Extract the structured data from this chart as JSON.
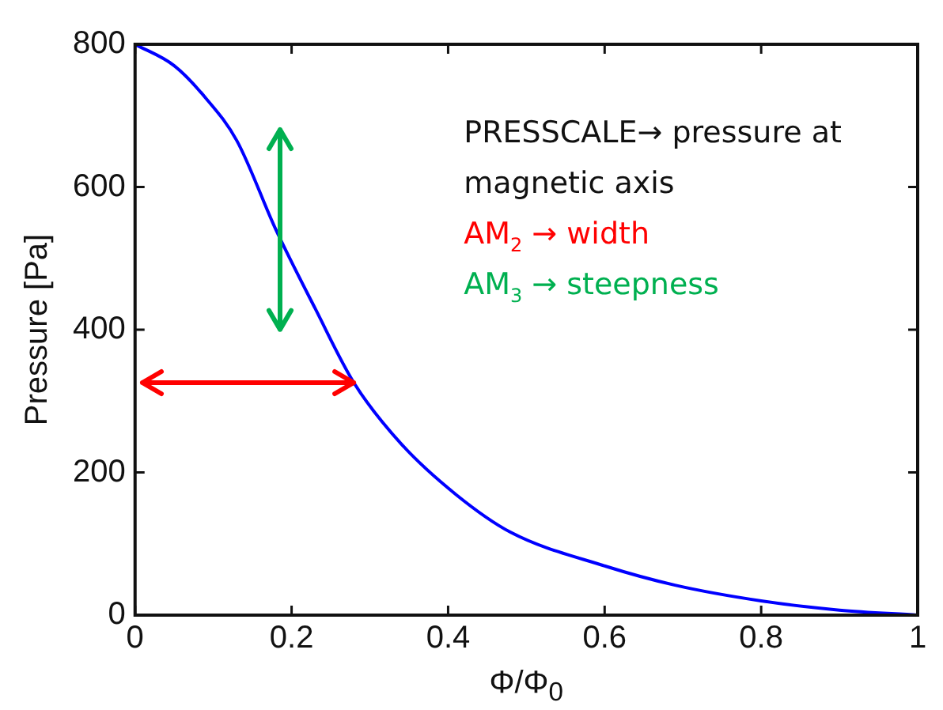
{
  "chart_data": {
    "type": "line",
    "xlabel": "Φ/Φ$_{0}$",
    "ylabel": "Pressure [Pa]",
    "x": [
      0,
      0.05,
      0.09,
      0.13,
      0.18,
      0.23,
      0.28,
      0.34,
      0.41,
      0.48,
      0.6,
      0.69,
      0.8,
      0.9,
      1.0
    ],
    "series": [
      {
        "color": "#0000ff",
        "values": [
          800,
          770,
          725,
          665,
          540,
          430,
          325,
          240,
          169,
          116,
          69,
          42,
          20,
          7,
          0
        ]
      }
    ],
    "xlim": [
      0,
      1
    ],
    "xticks": [
      0,
      0.2,
      0.4,
      0.6,
      0.8,
      1
    ],
    "ylim": [
      0,
      800
    ],
    "yticks": [
      0,
      200,
      400,
      600,
      800
    ],
    "grid": false,
    "legend": false,
    "marker": "none",
    "line_style": "solid",
    "annotations": [
      "PRESSCALE→ pressure at magnetic axis",
      "AM$_{2}$ → width",
      "AM$_{3}$ → steepness"
    ]
  }
}
